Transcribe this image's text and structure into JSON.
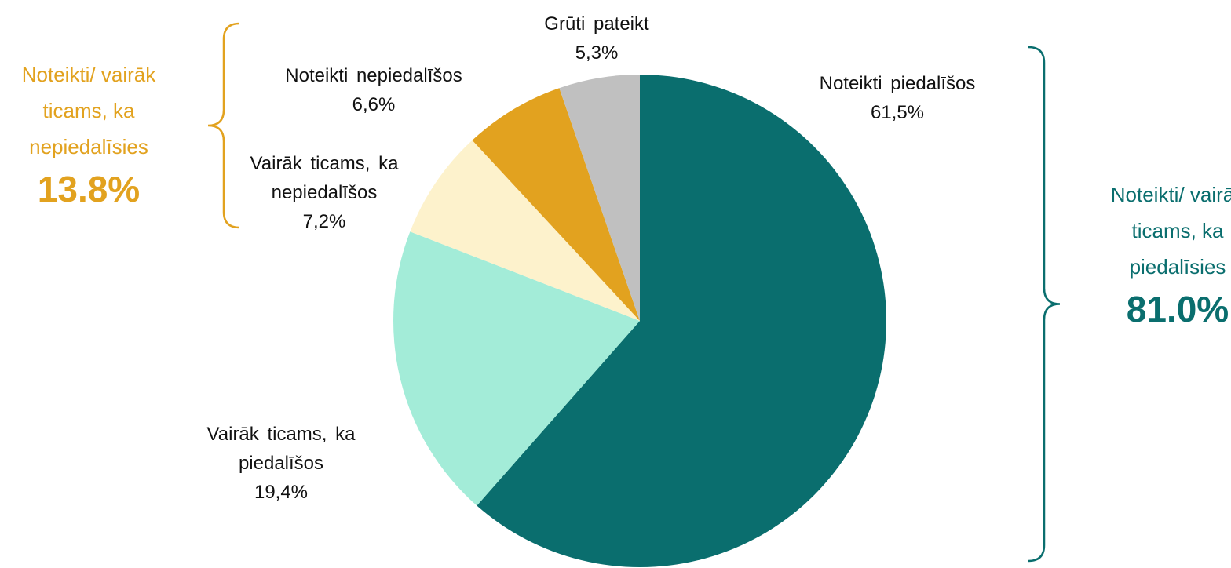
{
  "chart_data": {
    "type": "pie",
    "categories": [
      "Noteikti piedalīšos",
      "Vairāk ticams, ka piedalīšos",
      "Vairāk ticams, ka nepiedalīšos",
      "Noteikti nepiedalīšos",
      "Grūti pateikt"
    ],
    "values": [
      61.5,
      19.4,
      7.2,
      6.6,
      5.3
    ],
    "value_labels": [
      "61,5%",
      "19,4%",
      "7,2%",
      "6,6%",
      "5,3%"
    ],
    "colors": [
      "#0a6e6e",
      "#a3ecd8",
      "#fdf2cc",
      "#e2a21f",
      "#c0c0c0"
    ],
    "annotations": [
      {
        "text": "Noteikti/ vairāk ticams, ka nepiedalīsies",
        "total": "13.8%",
        "color": "#e2a21f"
      },
      {
        "text": "Noteikti/ vairāk ticams, ka piedalīsies",
        "total": "81.0%",
        "color": "#0a6e6e"
      }
    ]
  }
}
